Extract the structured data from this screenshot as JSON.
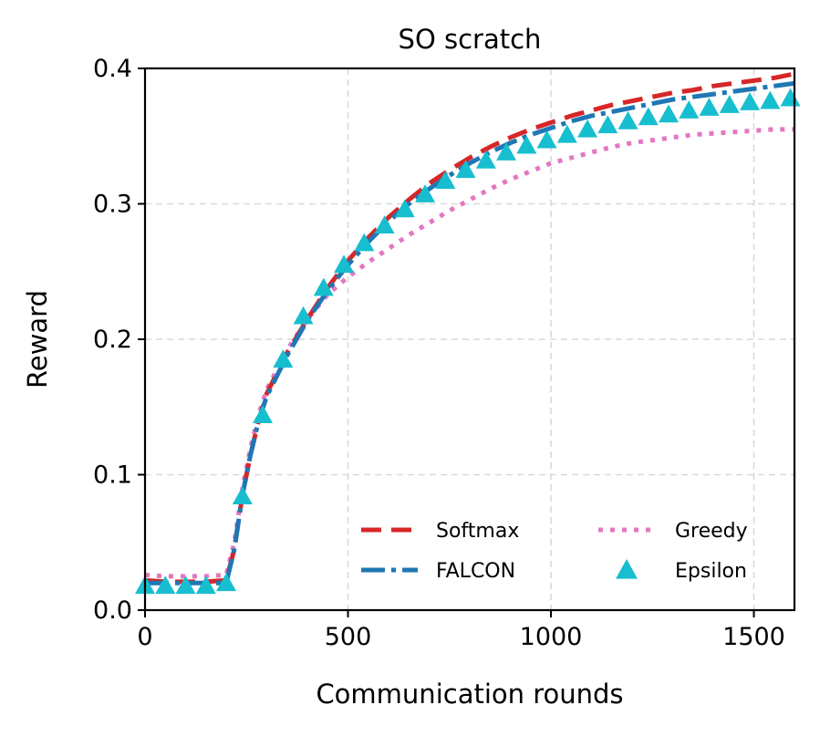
{
  "chart_data": {
    "type": "line",
    "title": "SO scratch",
    "xlabel": "Communication rounds",
    "ylabel": "Reward",
    "xlim": [
      0,
      1600
    ],
    "ylim": [
      0,
      0.4
    ],
    "xticks": [
      0,
      500,
      1000,
      1500
    ],
    "yticks": [
      0.0,
      0.1,
      0.2,
      0.3,
      0.4
    ],
    "xtick_labels": [
      "0",
      "500",
      "1000",
      "1500"
    ],
    "ytick_labels": [
      "0.0",
      "0.1",
      "0.2",
      "0.3",
      "0.4"
    ],
    "grid": true,
    "legend_position": "lower-right",
    "series": [
      {
        "name": "Softmax",
        "color": "#d62728",
        "style": "dashed",
        "x": [
          0,
          50,
          100,
          150,
          200,
          220,
          240,
          260,
          280,
          300,
          350,
          400,
          450,
          500,
          550,
          600,
          650,
          700,
          750,
          800,
          850,
          900,
          950,
          1000,
          1050,
          1100,
          1150,
          1200,
          1250,
          1300,
          1350,
          1400,
          1450,
          1500,
          1550,
          1600
        ],
        "y": [
          0.022,
          0.021,
          0.021,
          0.021,
          0.022,
          0.045,
          0.085,
          0.115,
          0.14,
          0.16,
          0.19,
          0.215,
          0.238,
          0.258,
          0.275,
          0.29,
          0.303,
          0.315,
          0.325,
          0.334,
          0.342,
          0.349,
          0.355,
          0.36,
          0.365,
          0.369,
          0.373,
          0.376,
          0.379,
          0.382,
          0.384,
          0.387,
          0.389,
          0.391,
          0.393,
          0.396
        ]
      },
      {
        "name": "FALCON",
        "color": "#1f77b4",
        "style": "dashdot",
        "x": [
          0,
          50,
          100,
          150,
          200,
          220,
          240,
          260,
          280,
          300,
          350,
          400,
          450,
          500,
          550,
          600,
          650,
          700,
          750,
          800,
          850,
          900,
          950,
          1000,
          1050,
          1100,
          1150,
          1200,
          1250,
          1300,
          1350,
          1400,
          1450,
          1500,
          1550,
          1600
        ],
        "y": [
          0.02,
          0.02,
          0.02,
          0.02,
          0.02,
          0.045,
          0.085,
          0.115,
          0.14,
          0.158,
          0.188,
          0.214,
          0.236,
          0.255,
          0.272,
          0.287,
          0.3,
          0.311,
          0.321,
          0.33,
          0.338,
          0.345,
          0.351,
          0.356,
          0.361,
          0.365,
          0.368,
          0.371,
          0.374,
          0.377,
          0.379,
          0.381,
          0.383,
          0.385,
          0.387,
          0.389
        ]
      },
      {
        "name": "Greedy",
        "color": "#e377c2",
        "style": "dotted",
        "x": [
          0,
          50,
          100,
          150,
          200,
          220,
          240,
          260,
          280,
          300,
          350,
          400,
          450,
          500,
          550,
          600,
          650,
          700,
          750,
          800,
          850,
          900,
          950,
          1000,
          1050,
          1100,
          1150,
          1200,
          1250,
          1300,
          1350,
          1400,
          1450,
          1500,
          1550,
          1600
        ],
        "y": [
          0.026,
          0.025,
          0.025,
          0.025,
          0.026,
          0.05,
          0.09,
          0.12,
          0.145,
          0.163,
          0.192,
          0.215,
          0.233,
          0.246,
          0.257,
          0.267,
          0.277,
          0.286,
          0.295,
          0.303,
          0.311,
          0.318,
          0.324,
          0.33,
          0.334,
          0.338,
          0.342,
          0.345,
          0.347,
          0.349,
          0.351,
          0.352,
          0.353,
          0.354,
          0.355,
          0.355
        ]
      },
      {
        "name": "Epsilon",
        "color": "#17becf",
        "style": "markers",
        "marker": "triangle",
        "x": [
          0,
          50,
          100,
          150,
          200,
          240,
          290,
          340,
          390,
          440,
          490,
          540,
          590,
          640,
          690,
          740,
          790,
          840,
          890,
          940,
          990,
          1040,
          1090,
          1140,
          1190,
          1240,
          1290,
          1340,
          1390,
          1440,
          1490,
          1540,
          1590
        ],
        "y": [
          0.018,
          0.018,
          0.018,
          0.018,
          0.02,
          0.084,
          0.144,
          0.185,
          0.217,
          0.238,
          0.255,
          0.271,
          0.284,
          0.296,
          0.307,
          0.317,
          0.325,
          0.332,
          0.338,
          0.343,
          0.347,
          0.351,
          0.355,
          0.358,
          0.361,
          0.364,
          0.366,
          0.369,
          0.371,
          0.373,
          0.375,
          0.376,
          0.378
        ]
      }
    ]
  }
}
